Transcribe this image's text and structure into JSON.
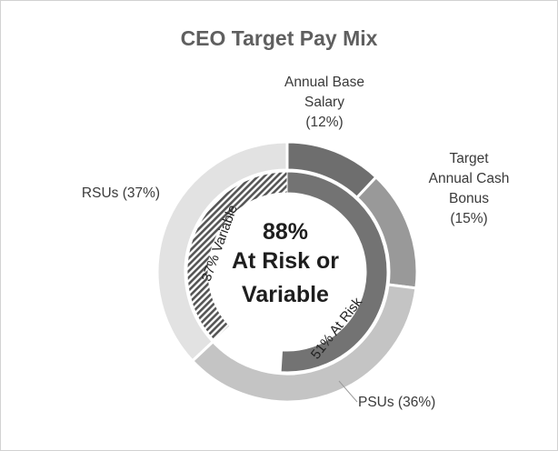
{
  "chart_data": {
    "type": "pie",
    "title": "CEO Target Pay Mix",
    "slices": [
      {
        "label_lines": [
          "Annual Base",
          "Salary",
          "(12%)"
        ],
        "value": 12,
        "color": "#6e6e6e"
      },
      {
        "label_lines": [
          "Target",
          "Annual Cash",
          "Bonus",
          "(15%)"
        ],
        "value": 15,
        "color": "#999999"
      },
      {
        "label_lines": [
          "PSUs (36%)"
        ],
        "value": 36,
        "color": "#c4c4c4"
      },
      {
        "label_lines": [
          "RSUs (37%)"
        ],
        "value": 37,
        "color": "#e2e2e2"
      }
    ],
    "inner_ring": [
      {
        "label": "51% At Risk",
        "value": 51,
        "color": "#737373",
        "pattern": "solid"
      },
      {
        "label": "37% Variable",
        "value": 37,
        "color": "#555555",
        "pattern": "hatched"
      }
    ],
    "center_text": [
      "88%",
      "At Risk or",
      "Variable"
    ]
  }
}
